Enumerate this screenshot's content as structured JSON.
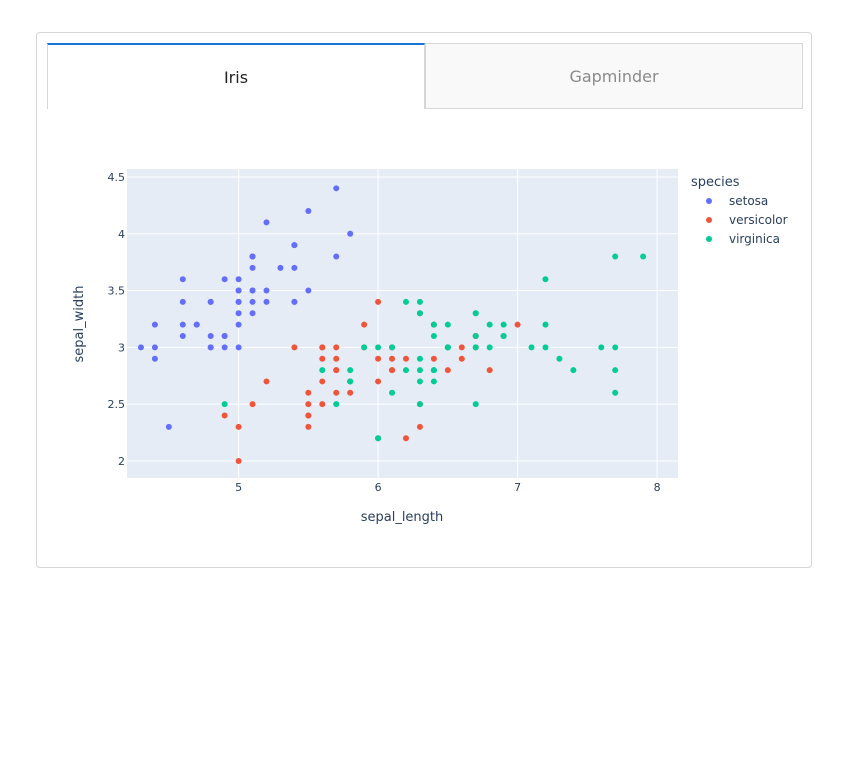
{
  "tabs": [
    {
      "label": "Iris",
      "active": true
    },
    {
      "label": "Gapminder",
      "active": false
    }
  ],
  "colors": {
    "setosa": "#636efa",
    "versicolor": "#ef553b",
    "virginica": "#00cc96",
    "plot_bg": "#e5ecf6",
    "tab_accent": "#1975d2"
  },
  "chart_data": {
    "type": "scatter",
    "xlabel": "sepal_length",
    "ylabel": "sepal_width",
    "xlim": [
      4.2,
      8.15
    ],
    "ylim": [
      1.85,
      4.57
    ],
    "xticks": [
      5,
      6,
      7,
      8
    ],
    "yticks": [
      2,
      2.5,
      3,
      3.5,
      4,
      4.5
    ],
    "ytick_labels": [
      "2",
      "2.5",
      "3",
      "3.5",
      "4",
      "4.5"
    ],
    "grid": true,
    "legend_title": "species",
    "legend_position": "top-right",
    "series": [
      {
        "name": "setosa",
        "points": [
          [
            5.1,
            3.5
          ],
          [
            4.9,
            3.0
          ],
          [
            4.7,
            3.2
          ],
          [
            4.6,
            3.1
          ],
          [
            5.0,
            3.6
          ],
          [
            5.4,
            3.9
          ],
          [
            4.6,
            3.4
          ],
          [
            5.0,
            3.4
          ],
          [
            4.4,
            2.9
          ],
          [
            4.9,
            3.1
          ],
          [
            5.4,
            3.7
          ],
          [
            4.8,
            3.4
          ],
          [
            4.8,
            3.0
          ],
          [
            4.3,
            3.0
          ],
          [
            5.8,
            4.0
          ],
          [
            5.7,
            4.4
          ],
          [
            5.4,
            3.9
          ],
          [
            5.1,
            3.5
          ],
          [
            5.7,
            3.8
          ],
          [
            5.1,
            3.8
          ],
          [
            5.4,
            3.4
          ],
          [
            5.1,
            3.7
          ],
          [
            4.6,
            3.6
          ],
          [
            5.1,
            3.3
          ],
          [
            4.8,
            3.4
          ],
          [
            5.0,
            3.0
          ],
          [
            5.0,
            3.4
          ],
          [
            5.2,
            3.5
          ],
          [
            5.2,
            3.4
          ],
          [
            4.7,
            3.2
          ],
          [
            4.8,
            3.1
          ],
          [
            5.4,
            3.4
          ],
          [
            5.2,
            4.1
          ],
          [
            5.5,
            4.2
          ],
          [
            4.9,
            3.1
          ],
          [
            5.0,
            3.2
          ],
          [
            5.5,
            3.5
          ],
          [
            4.9,
            3.6
          ],
          [
            4.4,
            3.0
          ],
          [
            5.1,
            3.4
          ],
          [
            5.0,
            3.5
          ],
          [
            4.5,
            2.3
          ],
          [
            4.4,
            3.2
          ],
          [
            5.0,
            3.5
          ],
          [
            5.1,
            3.8
          ],
          [
            4.8,
            3.0
          ],
          [
            5.1,
            3.8
          ],
          [
            4.6,
            3.2
          ],
          [
            5.3,
            3.7
          ],
          [
            5.0,
            3.3
          ]
        ]
      },
      {
        "name": "versicolor",
        "points": [
          [
            7.0,
            3.2
          ],
          [
            6.4,
            3.2
          ],
          [
            6.9,
            3.1
          ],
          [
            5.5,
            2.3
          ],
          [
            6.5,
            2.8
          ],
          [
            5.7,
            2.8
          ],
          [
            6.3,
            3.3
          ],
          [
            4.9,
            2.4
          ],
          [
            6.6,
            2.9
          ],
          [
            5.2,
            2.7
          ],
          [
            5.0,
            2.0
          ],
          [
            5.9,
            3.0
          ],
          [
            6.0,
            2.2
          ],
          [
            6.1,
            2.9
          ],
          [
            5.6,
            2.9
          ],
          [
            6.7,
            3.1
          ],
          [
            5.6,
            3.0
          ],
          [
            5.8,
            2.7
          ],
          [
            6.2,
            2.2
          ],
          [
            5.6,
            2.5
          ],
          [
            5.9,
            3.2
          ],
          [
            6.1,
            2.8
          ],
          [
            6.3,
            2.5
          ],
          [
            6.1,
            2.8
          ],
          [
            6.4,
            2.9
          ],
          [
            6.6,
            3.0
          ],
          [
            6.8,
            2.8
          ],
          [
            6.7,
            3.0
          ],
          [
            6.0,
            2.9
          ],
          [
            5.7,
            2.6
          ],
          [
            5.5,
            2.4
          ],
          [
            5.5,
            2.4
          ],
          [
            5.8,
            2.7
          ],
          [
            6.0,
            2.7
          ],
          [
            5.4,
            3.0
          ],
          [
            6.0,
            3.4
          ],
          [
            6.7,
            3.1
          ],
          [
            6.3,
            2.3
          ],
          [
            5.6,
            3.0
          ],
          [
            5.5,
            2.5
          ],
          [
            5.5,
            2.6
          ],
          [
            6.1,
            3.0
          ],
          [
            5.8,
            2.6
          ],
          [
            5.0,
            2.3
          ],
          [
            5.6,
            2.7
          ],
          [
            5.7,
            3.0
          ],
          [
            5.7,
            2.9
          ],
          [
            6.2,
            2.9
          ],
          [
            5.1,
            2.5
          ],
          [
            5.7,
            2.8
          ]
        ]
      },
      {
        "name": "virginica",
        "points": [
          [
            6.3,
            3.3
          ],
          [
            5.8,
            2.7
          ],
          [
            7.1,
            3.0
          ],
          [
            6.3,
            2.9
          ],
          [
            6.5,
            3.0
          ],
          [
            7.6,
            3.0
          ],
          [
            4.9,
            2.5
          ],
          [
            7.3,
            2.9
          ],
          [
            6.7,
            2.5
          ],
          [
            7.2,
            3.6
          ],
          [
            6.5,
            3.2
          ],
          [
            6.4,
            2.7
          ],
          [
            6.8,
            3.0
          ],
          [
            5.7,
            2.5
          ],
          [
            5.8,
            2.8
          ],
          [
            6.4,
            3.2
          ],
          [
            6.5,
            3.0
          ],
          [
            7.7,
            3.8
          ],
          [
            7.7,
            2.6
          ],
          [
            6.0,
            2.2
          ],
          [
            6.9,
            3.2
          ],
          [
            5.6,
            2.8
          ],
          [
            7.7,
            2.8
          ],
          [
            6.3,
            2.7
          ],
          [
            6.7,
            3.3
          ],
          [
            7.2,
            3.2
          ],
          [
            6.2,
            2.8
          ],
          [
            6.1,
            3.0
          ],
          [
            6.4,
            2.8
          ],
          [
            7.2,
            3.0
          ],
          [
            7.4,
            2.8
          ],
          [
            7.9,
            3.8
          ],
          [
            6.4,
            2.8
          ],
          [
            6.3,
            2.8
          ],
          [
            6.1,
            2.6
          ],
          [
            7.7,
            3.0
          ],
          [
            6.3,
            3.4
          ],
          [
            6.4,
            3.1
          ],
          [
            6.0,
            3.0
          ],
          [
            6.9,
            3.1
          ],
          [
            6.7,
            3.1
          ],
          [
            6.9,
            3.1
          ],
          [
            5.8,
            2.7
          ],
          [
            6.8,
            3.2
          ],
          [
            6.7,
            3.3
          ],
          [
            6.7,
            3.0
          ],
          [
            6.3,
            2.5
          ],
          [
            6.5,
            3.0
          ],
          [
            6.2,
            3.4
          ],
          [
            5.9,
            3.0
          ]
        ]
      }
    ]
  }
}
